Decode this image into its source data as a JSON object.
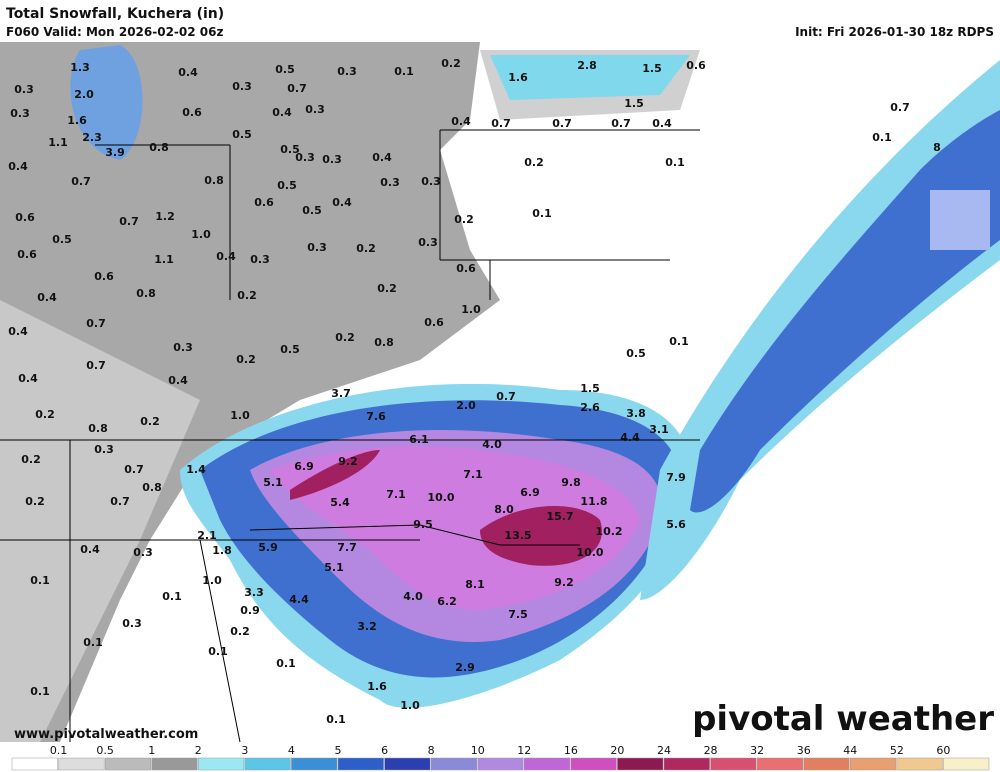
{
  "header": {
    "title": "Total Snowfall, Kuchera (in)",
    "valid": "F060 Valid: Mon 2026-02-02 06z",
    "init": "Init: Fri 2026-01-30 18z RDPS"
  },
  "map": {
    "labels": [
      "1.3",
      "0.4",
      "0.5",
      "0.3",
      "0.1",
      "0.2",
      "2.8",
      "1.5",
      "0.6",
      "1.6",
      "0.3",
      "2.0",
      "0.3",
      "0.7",
      "1.5",
      "0.3",
      "1.6",
      "0.6",
      "0.4",
      "0.3",
      "0.4",
      "0.7",
      "0.7",
      "0.7",
      "0.4",
      "2.3",
      "1.1",
      "0.5",
      "3.9",
      "0.8",
      "0.5",
      "0.3",
      "0.4",
      "0.2",
      "0.1",
      "0.4",
      "0.7",
      "0.8",
      "0.5",
      "0.3",
      "0.3",
      "0.6",
      "0.4",
      "0.6",
      "0.7",
      "1.2",
      "0.5",
      "0.2",
      "0.1",
      "0.5",
      "1.0",
      "0.3",
      "0.6",
      "1.1",
      "0.4",
      "0.3",
      "0.3",
      "0.2",
      "0.6",
      "0.6",
      "0.8",
      "0.2",
      "0.2",
      "0.4",
      "1.0",
      "0.7",
      "0.6",
      "0.4",
      "0.3",
      "0.5",
      "0.2",
      "0.8",
      "0.5",
      "0.1",
      "0.7",
      "0.2",
      "0.4",
      "0.4",
      "3.7",
      "1.5",
      "0.2",
      "0.2",
      "1.0",
      "7.6",
      "2.0",
      "0.7",
      "2.6",
      "3.8",
      "0.8",
      "6.1",
      "4.0",
      "4.4",
      "3.1",
      "0.3",
      "0.2",
      "1.4",
      "6.9",
      "9.2",
      "7.1",
      "7.9",
      "0.7",
      "0.8",
      "5.1",
      "9.8",
      "7.1",
      "10.0",
      "6.9",
      "0.2",
      "0.7",
      "5.4",
      "8.0",
      "11.8",
      "15.7",
      "9.5",
      "5.6",
      "10.2",
      "2.1",
      "13.5",
      "0.4",
      "0.3",
      "5.9",
      "7.7",
      "1.8",
      "10.0",
      "5.1",
      "0.1",
      "1.0",
      "9.2",
      "8.1",
      "3.3",
      "4.4",
      "4.0",
      "6.2",
      "0.1",
      "0.9",
      "7.5",
      "0.3",
      "3.2",
      "0.2",
      "0.1",
      "0.1",
      "0.1",
      "2.9",
      "1.6",
      "0.1",
      "1.0",
      "0.1",
      "0.7",
      "0.1",
      "8",
      "0.3"
    ],
    "website": "www.pivotalweather.com",
    "brand": "pivotal weather"
  },
  "legend": {
    "ticks": [
      "0.1",
      "0.5",
      "1",
      "2",
      "3",
      "4",
      "5",
      "6",
      "8",
      "10",
      "12",
      "16",
      "20",
      "24",
      "28",
      "32",
      "36",
      "44",
      "52",
      "60"
    ],
    "colors": [
      "#ffffff",
      "#dddddd",
      "#bbbbbb",
      "#999999",
      "#9be8f2",
      "#5cc6e6",
      "#3b8fd6",
      "#2c5fc8",
      "#2a3fb0",
      "#8a8ad8",
      "#b08ae0",
      "#c066d8",
      "#d04fc0",
      "#8a1a50",
      "#b02860",
      "#d85070",
      "#e87070",
      "#e08060",
      "#e8a070",
      "#f0c890",
      "#f8f0c8"
    ]
  }
}
